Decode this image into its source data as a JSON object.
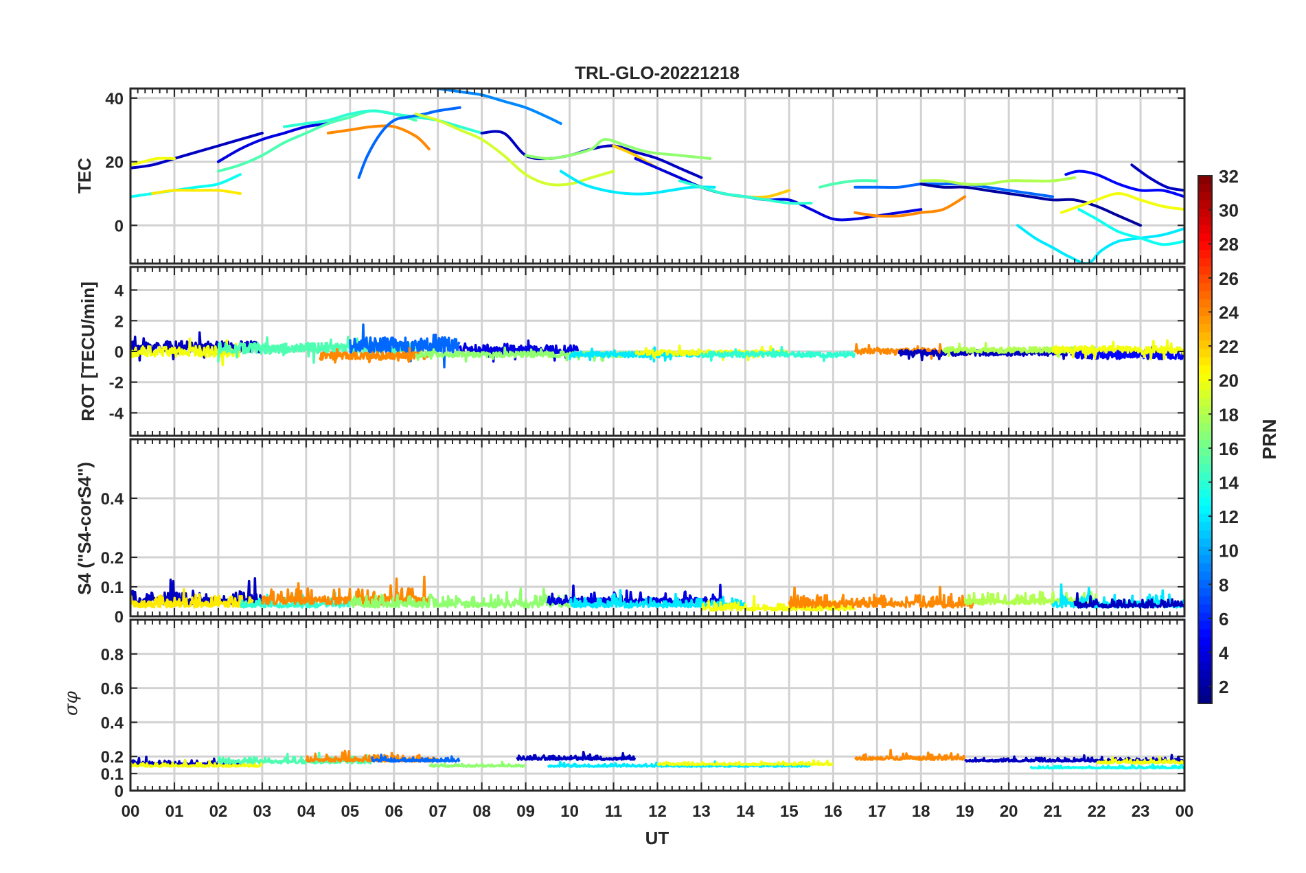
{
  "chart_data": {
    "type": "line",
    "title": "TRL-GLO-20221218",
    "xlabel": "UT",
    "x_tick_labels": [
      "00",
      "01",
      "02",
      "03",
      "04",
      "05",
      "06",
      "07",
      "08",
      "09",
      "10",
      "11",
      "12",
      "13",
      "14",
      "15",
      "16",
      "17",
      "18",
      "19",
      "20",
      "21",
      "22",
      "23",
      "00"
    ],
    "xlim": [
      0,
      24
    ],
    "panels": [
      {
        "id": "tec",
        "ylabel": "TEC",
        "ylim": [
          -12,
          43
        ],
        "yticks": [
          0,
          20,
          40
        ],
        "ytick_labels": [
          "0",
          "20",
          "40"
        ],
        "series": [
          {
            "prn": 3,
            "x": [
              0.0,
              0.5,
              1.0,
              1.5,
              2.0,
              2.5,
              3.0
            ],
            "y": [
              18,
              19,
              21,
              23,
              25,
              27,
              29
            ]
          },
          {
            "prn": 4,
            "x": [
              2.0,
              2.5,
              3.0,
              3.5,
              4.0,
              4.5
            ],
            "y": [
              20,
              24,
              27,
              29,
              31,
              32
            ]
          },
          {
            "prn": 13,
            "x": [
              0.0,
              0.5,
              1.0,
              1.5,
              2.0,
              2.5
            ],
            "y": [
              9,
              10,
              11,
              12,
              13,
              16
            ]
          },
          {
            "prn": 20,
            "x": [
              0.0,
              0.3,
              0.6,
              1.0
            ],
            "y": [
              19,
              20,
              21,
              21
            ]
          },
          {
            "prn": 21,
            "x": [
              0.5,
              1.0,
              1.5,
              2.0,
              2.5
            ],
            "y": [
              10,
              11,
              11,
              11,
              10
            ]
          },
          {
            "prn": 15,
            "x": [
              2.0,
              2.5,
              3.0,
              3.5,
              4.0,
              4.5,
              5.0,
              5.5,
              6.0,
              6.5
            ],
            "y": [
              17,
              19,
              22,
              26,
              29,
              32,
              34,
              36,
              35,
              33
            ]
          },
          {
            "prn": 14,
            "x": [
              3.5,
              4.0,
              4.5,
              5.0,
              5.5,
              6.0,
              6.5,
              7.0,
              7.5,
              8.0
            ],
            "y": [
              31,
              32,
              33,
              35,
              36,
              35,
              34,
              33,
              31,
              29
            ]
          },
          {
            "prn": 24,
            "x": [
              4.5,
              5.0,
              5.5,
              6.0,
              6.5,
              6.8
            ],
            "y": [
              29,
              30,
              31,
              31,
              28,
              24
            ]
          },
          {
            "prn": 8,
            "x": [
              5.2,
              5.4,
              5.7,
              6.0,
              6.3,
              6.7,
              7.0,
              7.5
            ],
            "y": [
              15,
              22,
              29,
              33,
              34,
              35,
              36,
              37
            ]
          },
          {
            "prn": 9,
            "x": [
              7.0,
              7.5,
              8.0,
              8.5,
              9.0,
              9.5,
              9.8
            ],
            "y": [
              43,
              42,
              41,
              39,
              37,
              34,
              32
            ]
          },
          {
            "prn": 19,
            "x": [
              6.5,
              7.0,
              7.5,
              8.0,
              8.5,
              9.0,
              9.5,
              10.0,
              10.5,
              11.0
            ],
            "y": [
              35,
              33,
              30,
              27,
              22,
              16,
              13,
              13,
              15,
              17
            ]
          },
          {
            "prn": 3,
            "x": [
              8.0,
              8.5,
              9.0,
              9.5,
              10.0,
              10.5,
              11.0,
              11.5,
              12.0,
              12.5,
              13.0
            ],
            "y": [
              29,
              29,
              22,
              21,
              22,
              24,
              25,
              23,
              21,
              18,
              15
            ]
          },
          {
            "prn": 17,
            "x": [
              9.0,
              9.5,
              10.0,
              10.5,
              10.8,
              11.3,
              11.8,
              12.5,
              13.2
            ],
            "y": [
              22,
              21,
              22,
              24,
              27,
              25,
              23,
              22,
              21
            ]
          },
          {
            "prn": 12,
            "x": [
              9.8,
              10.3,
              10.8,
              11.3,
              11.8,
              12.3,
              12.8,
              13.3
            ],
            "y": [
              17,
              13,
              11,
              10,
              10,
              11,
              12,
              12
            ]
          },
          {
            "prn": 22,
            "x": [
              11.0,
              11.5,
              12.0,
              12.5,
              13.0,
              13.5,
              14.0,
              14.5,
              15.0
            ],
            "y": [
              25,
              22,
              18,
              15,
              12,
              10,
              9,
              9,
              11
            ]
          },
          {
            "prn": 4,
            "x": [
              11.5,
              12.0,
              12.5,
              13.0,
              13.5,
              14.0,
              14.5,
              15.0,
              15.5,
              16.0,
              16.5,
              17.0,
              17.5,
              18.0
            ],
            "y": [
              21,
              18,
              15,
              12,
              10,
              9,
              8,
              8,
              5,
              2,
              2,
              3,
              4,
              5
            ]
          },
          {
            "prn": 14,
            "x": [
              12.5,
              13.0,
              13.5,
              14.0,
              14.5,
              15.0,
              15.5
            ],
            "y": [
              14,
              12,
              10,
              9,
              8,
              7,
              7
            ]
          },
          {
            "prn": 15,
            "x": [
              15.7,
              16.0,
              16.5,
              17.0
            ],
            "y": [
              12,
              13,
              14,
              14
            ]
          },
          {
            "prn": 24,
            "x": [
              16.5,
              17.0,
              17.5,
              18.0,
              18.5,
              19.0
            ],
            "y": [
              4,
              3,
              3,
              4,
              5,
              9
            ]
          },
          {
            "prn": 8,
            "x": [
              16.5,
              17.0,
              17.5,
              18.0,
              18.5,
              19.0,
              19.5,
              20.0,
              20.5,
              21.0
            ],
            "y": [
              12,
              12,
              12,
              13,
              13,
              13,
              12,
              11,
              10,
              9
            ]
          },
          {
            "prn": 18,
            "x": [
              18.0,
              18.5,
              19.0,
              19.5,
              20.0,
              20.5,
              21.0,
              21.5
            ],
            "y": [
              14,
              14,
              13,
              13,
              14,
              14,
              14,
              15
            ]
          },
          {
            "prn": 2,
            "x": [
              18.0,
              18.5,
              19.0,
              19.5,
              20.0,
              20.5,
              21.0,
              21.5,
              22.0,
              22.5,
              23.0
            ],
            "y": [
              13,
              12,
              12,
              11,
              10,
              9,
              8,
              8,
              6,
              3,
              0
            ]
          },
          {
            "prn": 5,
            "x": [
              21.3,
              21.6,
              22.0,
              22.5,
              23.0,
              23.5,
              24.0
            ],
            "y": [
              16,
              17,
              16,
              13,
              11,
              11,
              9
            ]
          },
          {
            "prn": 12,
            "x": [
              20.2,
              20.6,
              21.0,
              21.4,
              21.8,
              22.1,
              22.5,
              23.0,
              23.5,
              24.0
            ],
            "y": [
              0,
              -4,
              -7,
              -10,
              -12,
              -8,
              -5,
              -4,
              -3,
              -1
            ]
          },
          {
            "prn": 20,
            "x": [
              21.2,
              21.6,
              22.0,
              22.5,
              23.0,
              23.5,
              24.0
            ],
            "y": [
              4,
              6,
              8,
              10,
              8,
              6,
              5
            ]
          },
          {
            "prn": 3,
            "x": [
              22.8,
              23.2,
              23.6,
              24.0
            ],
            "y": [
              19,
              15,
              12,
              11
            ]
          },
          {
            "prn": 13,
            "x": [
              21.6,
              22.0,
              22.5,
              23.0,
              23.5,
              24.0
            ],
            "y": [
              5,
              2,
              -2,
              -4,
              -6,
              -5
            ]
          }
        ]
      },
      {
        "id": "rot",
        "ylabel": "ROT [TECU/min]",
        "ylim": [
          -5.5,
          5.5
        ],
        "yticks": [
          -4,
          -2,
          0,
          2,
          4
        ],
        "ytick_labels": [
          "-4",
          "-2",
          "0",
          "2",
          "4"
        ],
        "series": [
          {
            "prn": 3,
            "x0": 0.0,
            "x1": 3.0,
            "mean": 0.3,
            "amp": 0.6
          },
          {
            "prn": 20,
            "x0": 0.0,
            "x1": 2.5,
            "mean": 0.0,
            "amp": 0.6
          },
          {
            "prn": 15,
            "x0": 2.0,
            "x1": 6.5,
            "mean": 0.2,
            "amp": 0.6
          },
          {
            "prn": 8,
            "x0": 5.0,
            "x1": 7.5,
            "mean": 0.4,
            "amp": 0.9
          },
          {
            "prn": 24,
            "x0": 4.3,
            "x1": 6.8,
            "mean": -0.3,
            "amp": 0.4
          },
          {
            "prn": 4,
            "x0": 7.5,
            "x1": 10.2,
            "mean": 0.1,
            "amp": 0.5
          },
          {
            "prn": 17,
            "x0": 6.5,
            "x1": 11.5,
            "mean": -0.2,
            "amp": 0.3
          },
          {
            "prn": 12,
            "x0": 10.0,
            "x1": 13.0,
            "mean": -0.2,
            "amp": 0.3
          },
          {
            "prn": 20,
            "x0": 11.5,
            "x1": 15.0,
            "mean": -0.1,
            "amp": 0.3
          },
          {
            "prn": 14,
            "x0": 13.0,
            "x1": 16.5,
            "mean": -0.2,
            "amp": 0.3
          },
          {
            "prn": 24,
            "x0": 16.5,
            "x1": 19.2,
            "mean": 0.0,
            "amp": 0.3
          },
          {
            "prn": 3,
            "x0": 17.5,
            "x1": 21.5,
            "mean": -0.1,
            "amp": 0.3
          },
          {
            "prn": 18,
            "x0": 18.5,
            "x1": 22.0,
            "mean": 0.1,
            "amp": 0.3
          },
          {
            "prn": 5,
            "x0": 21.5,
            "x1": 24.0,
            "mean": -0.2,
            "amp": 0.5
          },
          {
            "prn": 20,
            "x0": 21.0,
            "x1": 24.0,
            "mean": 0.1,
            "amp": 0.4
          }
        ]
      },
      {
        "id": "s4",
        "ylabel": "S4 (\"S4-corS4\")",
        "ylim": [
          0,
          0.6
        ],
        "yticks": [
          0,
          0.1,
          0.2,
          0.4
        ],
        "ytick_labels": [
          "0",
          "0.1",
          "0.2",
          "0.4"
        ],
        "series": [
          {
            "prn": 3,
            "x0": 0.0,
            "x1": 3.2,
            "base": 0.04,
            "amp": 0.09
          },
          {
            "prn": 21,
            "x0": 0.0,
            "x1": 2.8,
            "base": 0.03,
            "amp": 0.08
          },
          {
            "prn": 14,
            "x0": 2.5,
            "x1": 5.0,
            "base": 0.03,
            "amp": 0.06
          },
          {
            "prn": 24,
            "x0": 3.0,
            "x1": 6.8,
            "base": 0.04,
            "amp": 0.1
          },
          {
            "prn": 17,
            "x0": 5.0,
            "x1": 10.0,
            "base": 0.03,
            "amp": 0.08
          },
          {
            "prn": 4,
            "x0": 9.5,
            "x1": 13.5,
            "base": 0.04,
            "amp": 0.08
          },
          {
            "prn": 12,
            "x0": 10.0,
            "x1": 14.0,
            "base": 0.03,
            "amp": 0.06
          },
          {
            "prn": 20,
            "x0": 13.0,
            "x1": 16.5,
            "base": 0.02,
            "amp": 0.05
          },
          {
            "prn": 24,
            "x0": 15.0,
            "x1": 19.2,
            "base": 0.03,
            "amp": 0.08
          },
          {
            "prn": 18,
            "x0": 19.0,
            "x1": 22.0,
            "base": 0.04,
            "amp": 0.08
          },
          {
            "prn": 12,
            "x0": 21.0,
            "x1": 24.0,
            "base": 0.03,
            "amp": 0.08
          },
          {
            "prn": 3,
            "x0": 21.5,
            "x1": 24.0,
            "base": 0.03,
            "amp": 0.05
          }
        ]
      },
      {
        "id": "sigma",
        "ylabel": "σφ",
        "ylim": [
          0,
          1
        ],
        "yticks": [
          0,
          0.1,
          0.2,
          0.4,
          0.6,
          0.8
        ],
        "ytick_labels": [
          "0",
          "0.1",
          "0.2",
          "0.4",
          "0.6",
          "0.8"
        ],
        "series": [
          {
            "prn": 3,
            "x0": 0.0,
            "x1": 2.5,
            "base": 0.15,
            "amp": 0.05
          },
          {
            "prn": 20,
            "x0": 0.0,
            "x1": 3.0,
            "base": 0.14,
            "amp": 0.04
          },
          {
            "prn": 15,
            "x0": 2.0,
            "x1": 5.5,
            "base": 0.16,
            "amp": 0.07
          },
          {
            "prn": 24,
            "x0": 4.0,
            "x1": 7.0,
            "base": 0.17,
            "amp": 0.07
          },
          {
            "prn": 8,
            "x0": 5.5,
            "x1": 7.5,
            "base": 0.17,
            "amp": 0.04
          },
          {
            "prn": 17,
            "x0": 6.8,
            "x1": 9.0,
            "base": 0.14,
            "amp": 0.03
          },
          {
            "prn": 3,
            "x0": 8.8,
            "x1": 11.5,
            "base": 0.18,
            "amp": 0.05
          },
          {
            "prn": 12,
            "x0": 9.5,
            "x1": 15.5,
            "base": 0.14,
            "amp": 0.03
          },
          {
            "prn": 20,
            "x0": 12.0,
            "x1": 16.0,
            "base": 0.15,
            "amp": 0.03
          },
          {
            "prn": 24,
            "x0": 16.5,
            "x1": 19.0,
            "base": 0.18,
            "amp": 0.07
          },
          {
            "prn": 3,
            "x0": 19.0,
            "x1": 24.0,
            "base": 0.17,
            "amp": 0.04
          },
          {
            "prn": 13,
            "x0": 20.5,
            "x1": 24.0,
            "base": 0.13,
            "amp": 0.03
          },
          {
            "prn": 20,
            "x0": 22.0,
            "x1": 24.0,
            "base": 0.16,
            "amp": 0.04
          }
        ]
      }
    ],
    "colorbar": {
      "label": "PRN",
      "range": [
        1,
        32
      ],
      "tick_values": [
        2,
        4,
        6,
        8,
        10,
        12,
        14,
        16,
        18,
        20,
        22,
        24,
        26,
        28,
        30,
        32
      ],
      "tick_labels": [
        "2",
        "4",
        "6",
        "8",
        "10",
        "12",
        "14",
        "16",
        "18",
        "20",
        "22",
        "24",
        "26",
        "28",
        "30",
        "32"
      ],
      "colormap": "jet"
    }
  }
}
